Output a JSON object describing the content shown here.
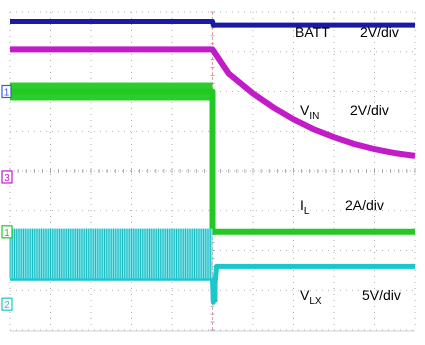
{
  "chart_data": {
    "type": "line",
    "grid": true,
    "divisions": {
      "horizontal": 10,
      "vertical": 8
    },
    "series": [
      {
        "name": "BATT",
        "scale": "2V/div",
        "color": "#1a1aa6",
        "channel_marker": "",
        "x": [
          0,
          5,
          5.02,
          10
        ],
        "y": [
          7.76,
          7.76,
          7.67,
          7.67
        ]
      },
      {
        "name": "VIN",
        "name_main": "V",
        "name_sub": "IN",
        "scale": "2V/div",
        "color": "#c21cc9",
        "channel_marker": "3",
        "x": [
          0,
          5,
          5.4,
          6.0,
          6.5,
          7.0,
          7.5,
          8.0,
          8.5,
          9.0,
          9.5,
          10
        ],
        "y": [
          7.06,
          7.06,
          6.45,
          5.95,
          5.6,
          5.3,
          5.05,
          4.85,
          4.68,
          4.55,
          4.45,
          4.38
        ]
      },
      {
        "name": "IL",
        "name_main": "I",
        "name_sub": "L",
        "scale": "2A/div",
        "color": "#22c922",
        "channel_marker": "1",
        "x": [
          0,
          5,
          5,
          10
        ],
        "y": [
          6.0,
          6.0,
          2.47,
          2.47
        ]
      },
      {
        "name": "VLX",
        "name_main": "V",
        "name_sub": "LX",
        "scale": "5V/div",
        "color": "#1cc6cc",
        "channel_marker": "2",
        "x": [
          0,
          5,
          5.02,
          5.1,
          10
        ],
        "y": [
          1.3,
          1.3,
          0.7,
          1.6,
          1.6
        ]
      }
    ]
  }
}
